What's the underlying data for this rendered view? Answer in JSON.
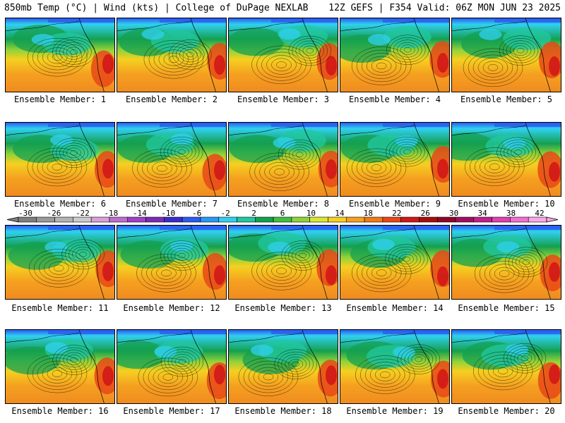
{
  "header": {
    "left": "850mb Temp (°C) | Wind (kts) | College of DuPage NEXLAB",
    "right": "12Z GEFS | F354 Valid: 06Z MON JUN 23 2025"
  },
  "caption_prefix": "Ensemble Member: ",
  "members": [
    1,
    2,
    3,
    4,
    5,
    6,
    7,
    8,
    9,
    10,
    11,
    12,
    13,
    14,
    15,
    16,
    17,
    18,
    19,
    20
  ],
  "colorbar": {
    "labels": [
      "-30",
      "-26",
      "-22",
      "-18",
      "-14",
      "-10",
      "-6",
      "-2",
      "2",
      "6",
      "10",
      "14",
      "18",
      "22",
      "26",
      "30",
      "34",
      "38",
      "42"
    ],
    "colors": [
      "#7f7f7f",
      "#9a9a9a",
      "#b3b3b3",
      "#cbcbcb",
      "#d9a0d9",
      "#c06bd0",
      "#a040c8",
      "#7d2ab5",
      "#3b2ad0",
      "#2a5cf0",
      "#2a98f5",
      "#30d0f0",
      "#22c8a0",
      "#14a050",
      "#40c040",
      "#8fd23a",
      "#d8e830",
      "#f5d020",
      "#f5a020",
      "#ef7a18",
      "#e84818",
      "#d01818",
      "#a80c0c",
      "#8c0828",
      "#a01060",
      "#c0208c",
      "#e040b0",
      "#f070d0",
      "#f8a8e8"
    ]
  }
}
